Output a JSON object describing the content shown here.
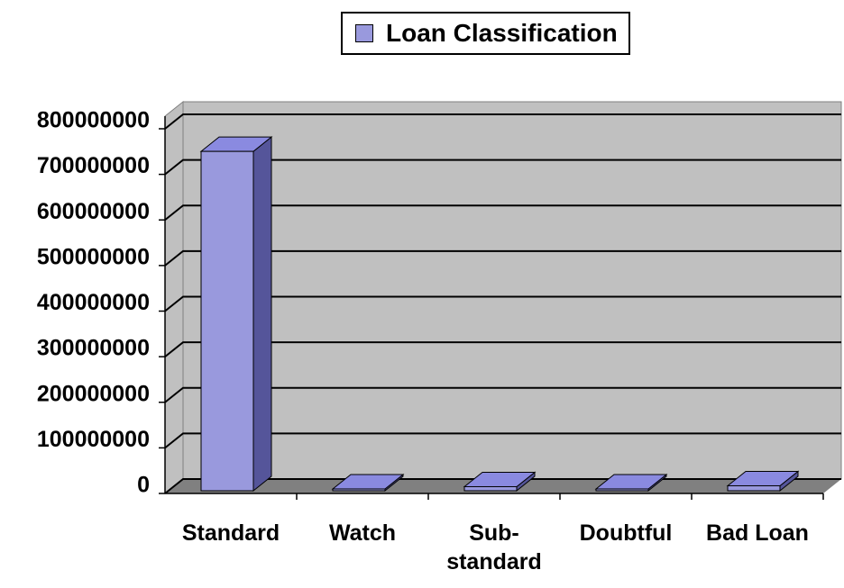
{
  "chart_data": {
    "type": "bar3d",
    "categories": [
      "Standard",
      "Watch",
      "Sub-standard",
      "Doubtful",
      "Bad Loan"
    ],
    "series": [
      {
        "name": "Loan Classification",
        "color": "#9999dd",
        "values": [
          750000000,
          4000000,
          9000000,
          4000000,
          11000000
        ]
      }
    ],
    "ylim": [
      0,
      800000000
    ],
    "yticks": [
      0,
      100000000,
      200000000,
      300000000,
      400000000,
      500000000,
      600000000,
      700000000,
      800000000
    ],
    "grid": true,
    "legend": "top"
  }
}
